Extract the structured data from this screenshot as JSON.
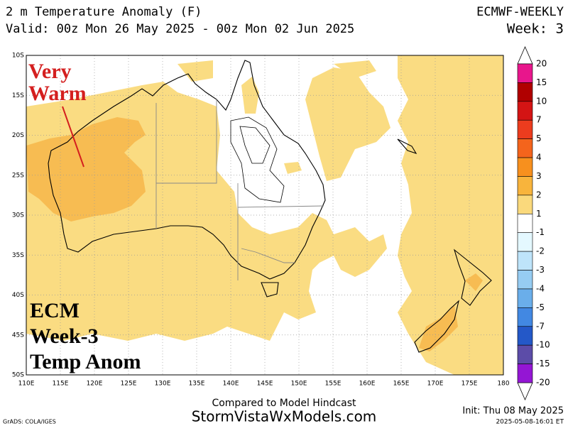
{
  "header": {
    "title": "2 m Temperature Anomaly (F)",
    "model": "ECMWF-WEEKLY",
    "valid": "Valid: 00z Mon 26 May 2025 - 00z Mon 02 Jun 2025",
    "week": "Week: 3"
  },
  "map": {
    "lat_labels": [
      "10S",
      "15S",
      "20S",
      "25S",
      "30S",
      "35S",
      "40S",
      "45S",
      "50S"
    ],
    "lon_labels": [
      "110E",
      "115E",
      "120E",
      "125E",
      "130E",
      "135E",
      "140E",
      "145E",
      "150E",
      "155E",
      "160E",
      "165E",
      "170E",
      "175E",
      "180"
    ]
  },
  "annotations": {
    "corner_note": "Very\nWarm",
    "label_lines": [
      "ECM",
      "Week-3",
      "Temp Anom"
    ]
  },
  "colorbar": {
    "labels": [
      "20",
      "15",
      "10",
      "7",
      "5",
      "4",
      "3",
      "2",
      "1",
      "-1",
      "-2",
      "-3",
      "-4",
      "-5",
      "-7",
      "-10",
      "-15",
      "-20"
    ],
    "colors": [
      "#e8168c",
      "#b00000",
      "#d41414",
      "#ec3c1e",
      "#f4641c",
      "#f7901e",
      "#f8b43c",
      "#fad97c",
      "#ffffff",
      "#e4f8ff",
      "#bee4fa",
      "#96ccf2",
      "#6aaeea",
      "#4288e2",
      "#2458c8",
      "#5c4ca8",
      "#9416d4"
    ]
  },
  "footer": {
    "compare": "Compared to Model Hindcast",
    "site": "StormVistaWxModels.com",
    "grads": "GrADS: COLA/IGES",
    "init": "Init: Thu 08 May 2025",
    "stamp": "2025-05-08-16:01 ET"
  }
}
